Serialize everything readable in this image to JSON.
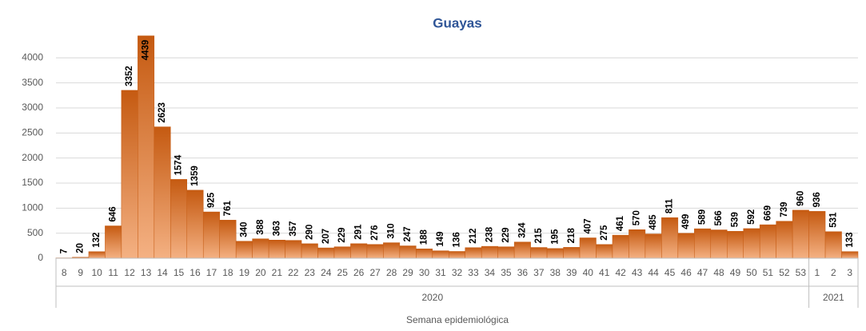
{
  "chart_data": {
    "type": "bar",
    "title": "Guayas",
    "x_label": "Semana epidemiológica",
    "categories": [
      "8",
      "9",
      "10",
      "11",
      "12",
      "13",
      "14",
      "15",
      "16",
      "17",
      "18",
      "19",
      "20",
      "21",
      "22",
      "23",
      "24",
      "25",
      "26",
      "27",
      "28",
      "29",
      "30",
      "31",
      "32",
      "33",
      "34",
      "35",
      "36",
      "37",
      "38",
      "39",
      "40",
      "41",
      "42",
      "43",
      "44",
      "45",
      "46",
      "47",
      "48",
      "49",
      "50",
      "51",
      "52",
      "53",
      "1",
      "2",
      "3"
    ],
    "values": [
      7,
      20,
      132,
      646,
      3352,
      4439,
      2623,
      1574,
      1359,
      925,
      761,
      340,
      388,
      363,
      357,
      290,
      207,
      229,
      291,
      276,
      310,
      247,
      188,
      149,
      136,
      212,
      238,
      229,
      324,
      215,
      195,
      218,
      407,
      275,
      461,
      570,
      485,
      811,
      499,
      589,
      566,
      539,
      592,
      669,
      739,
      960,
      936,
      531,
      133
    ],
    "x_groups": [
      {
        "label": "2020",
        "count": 46
      },
      {
        "label": "2021",
        "count": 3
      }
    ],
    "color": "#c55a11",
    "ylim": [
      0,
      4500
    ],
    "yticks": [
      0,
      500,
      1000,
      1500,
      2000,
      2500,
      3000,
      3500,
      4000
    ],
    "grid": true
  }
}
